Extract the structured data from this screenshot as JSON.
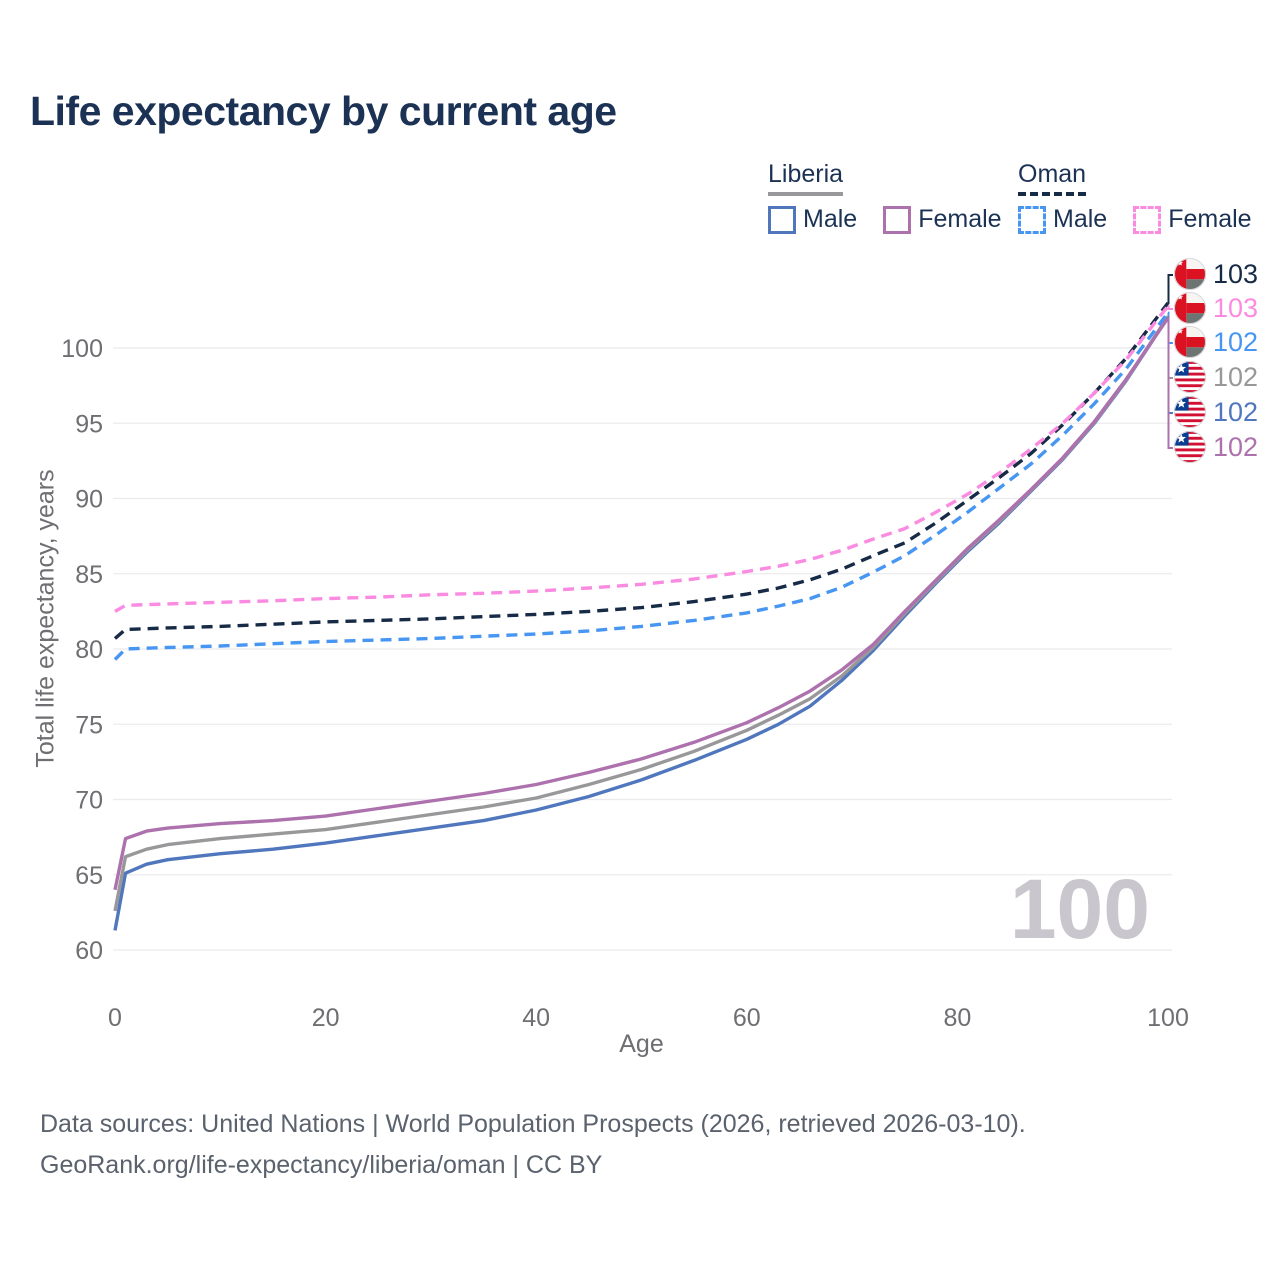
{
  "title": "Life expectancy by current age",
  "watermark": "100",
  "legend": {
    "groups": [
      {
        "label": "Liberia",
        "underline_style": "solid",
        "underline_color": "#98989a",
        "items": [
          {
            "label": "Male",
            "color": "#5077be",
            "dashed": false
          },
          {
            "label": "Female",
            "color": "#ad72ad",
            "dashed": false
          }
        ]
      },
      {
        "label": "Oman",
        "underline_style": "dashed",
        "underline_color": "#172b46",
        "items": [
          {
            "label": "Male",
            "color": "#4796f2",
            "dashed": true
          },
          {
            "label": "Female",
            "color": "#fb8be1",
            "dashed": true
          }
        ]
      }
    ]
  },
  "end_labels": [
    {
      "flag": "oman-flag",
      "value": "103",
      "color": "#172b46"
    },
    {
      "flag": "oman-flag",
      "value": "103",
      "color": "#fb8be1"
    },
    {
      "flag": "oman-flag",
      "value": "102",
      "color": "#4796f2"
    },
    {
      "flag": "liberia-flag",
      "value": "102",
      "color": "#98989a"
    },
    {
      "flag": "liberia-flag",
      "value": "102",
      "color": "#5077be"
    },
    {
      "flag": "liberia-flag",
      "value": "102",
      "color": "#ad72ad"
    }
  ],
  "footer": {
    "line1": "Data sources: United Nations | World Population Prospects (2026, retrieved 2026-03-10).",
    "line2": "GeoRank.org/life-expectancy/liberia/oman | CC BY"
  },
  "chart_data": {
    "type": "line",
    "title": "Life expectancy by current age",
    "xlabel": "Age",
    "ylabel": "Total life expectancy, years",
    "xlim": [
      0,
      100
    ],
    "ylim": [
      60,
      103.5
    ],
    "x_ticks": [
      0,
      20,
      40,
      60,
      80,
      100
    ],
    "y_ticks": [
      60,
      65,
      70,
      75,
      80,
      85,
      90,
      95,
      100
    ],
    "grid": "horizontal",
    "legend_position": "top-right",
    "x": [
      0,
      1,
      3,
      5,
      10,
      15,
      20,
      25,
      30,
      35,
      40,
      45,
      50,
      55,
      60,
      63,
      66,
      69,
      72,
      75,
      78,
      81,
      84,
      87,
      90,
      93,
      96,
      100
    ],
    "series": [
      {
        "name": "Liberia Male",
        "color": "#5077be",
        "dash": false,
        "end_label": "102",
        "values": [
          61.3,
          65.1,
          65.7,
          66.0,
          66.4,
          66.7,
          67.1,
          67.6,
          68.1,
          68.6,
          69.3,
          70.2,
          71.3,
          72.6,
          74.0,
          75.0,
          76.2,
          77.9,
          79.9,
          82.2,
          84.4,
          86.5,
          88.4,
          90.5,
          92.6,
          95.0,
          97.8,
          102.05
        ]
      },
      {
        "name": "Liberia (both sexes)",
        "color": "#98989a",
        "dash": false,
        "end_label": "102",
        "values": [
          62.6,
          66.2,
          66.7,
          67.0,
          67.4,
          67.7,
          68.0,
          68.5,
          69.0,
          69.5,
          70.1,
          71.0,
          72.0,
          73.2,
          74.6,
          75.6,
          76.7,
          78.2,
          80.1,
          82.35,
          84.5,
          86.6,
          88.5,
          90.55,
          92.65,
          95.05,
          97.85,
          102.1
        ]
      },
      {
        "name": "Liberia Female",
        "color": "#ad72ad",
        "dash": false,
        "end_label": "102",
        "values": [
          64.0,
          67.4,
          67.9,
          68.1,
          68.4,
          68.6,
          68.9,
          69.4,
          69.9,
          70.4,
          71.0,
          71.8,
          72.7,
          73.8,
          75.1,
          76.1,
          77.2,
          78.6,
          80.3,
          82.5,
          84.6,
          86.7,
          88.6,
          90.6,
          92.7,
          95.1,
          97.9,
          102.0
        ]
      },
      {
        "name": "Oman Male",
        "color": "#4796f2",
        "dash": true,
        "end_label": "102",
        "values": [
          79.3,
          80.0,
          80.05,
          80.1,
          80.2,
          80.35,
          80.5,
          80.6,
          80.7,
          80.85,
          81.0,
          81.2,
          81.5,
          81.9,
          82.4,
          82.85,
          83.35,
          84.1,
          85.1,
          86.2,
          87.6,
          89.1,
          90.7,
          92.3,
          94.2,
          96.3,
          98.6,
          102.35
        ]
      },
      {
        "name": "Oman (both sexes)",
        "color": "#172b46",
        "dash": true,
        "end_label": "103",
        "values": [
          80.7,
          81.3,
          81.35,
          81.4,
          81.5,
          81.65,
          81.8,
          81.9,
          82.0,
          82.15,
          82.3,
          82.5,
          82.75,
          83.15,
          83.65,
          84.05,
          84.6,
          85.3,
          86.2,
          87.05,
          88.4,
          89.9,
          91.4,
          93.0,
          94.9,
          97.0,
          99.3,
          103.0
        ]
      },
      {
        "name": "Oman Female",
        "color": "#fb8be1",
        "dash": true,
        "end_label": "103",
        "values": [
          82.5,
          82.9,
          82.95,
          83.0,
          83.1,
          83.2,
          83.35,
          83.45,
          83.6,
          83.7,
          83.85,
          84.05,
          84.3,
          84.65,
          85.15,
          85.5,
          85.95,
          86.55,
          87.3,
          88.0,
          89.1,
          90.3,
          91.7,
          93.3,
          95.0,
          97.0,
          99.2,
          102.8
        ]
      }
    ]
  }
}
